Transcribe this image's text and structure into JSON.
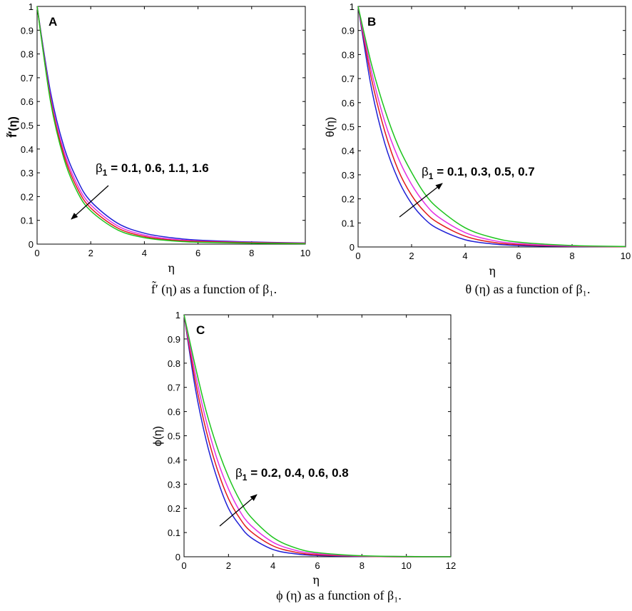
{
  "chart_data": [
    {
      "type": "line",
      "panel_label": "A",
      "xlabel": "η",
      "ylabel": "f̃′(η)",
      "xlim": [
        0,
        10
      ],
      "ylim": [
        0,
        1
      ],
      "xticks": [
        "0",
        "2",
        "4",
        "6",
        "8",
        "10"
      ],
      "yticks": [
        "0",
        "0.1",
        "0.2",
        "0.3",
        "0.4",
        "0.5",
        "0.6",
        "0.7",
        "0.8",
        "0.9",
        "1"
      ],
      "annotation": {
        "symbol": "β",
        "subscript": "1",
        "text": " = 0.1, 0.6, 1.1, 1.6"
      },
      "caption": "f̃′ (η) as a function of β₁.",
      "grid": false,
      "series": [
        {
          "color": "#1f1fd6",
          "x": [
            0,
            0.5,
            1,
            1.5,
            2,
            3,
            4,
            5,
            6,
            8,
            10
          ],
          "y": [
            1.0,
            0.64,
            0.41,
            0.27,
            0.18,
            0.088,
            0.046,
            0.027,
            0.017,
            0.009,
            0.005
          ]
        },
        {
          "color": "#e42fe4",
          "x": [
            0,
            0.5,
            1,
            1.5,
            2,
            3,
            4,
            5,
            6,
            8,
            10
          ],
          "y": [
            1.0,
            0.62,
            0.39,
            0.25,
            0.165,
            0.077,
            0.038,
            0.021,
            0.013,
            0.007,
            0.004
          ]
        },
        {
          "color": "#e11a1a",
          "x": [
            0,
            0.5,
            1,
            1.5,
            2,
            3,
            4,
            5,
            6,
            8,
            10
          ],
          "y": [
            1.0,
            0.61,
            0.375,
            0.235,
            0.152,
            0.068,
            0.032,
            0.017,
            0.011,
            0.006,
            0.003
          ]
        },
        {
          "color": "#1dc41d",
          "x": [
            0,
            0.5,
            1,
            1.5,
            2,
            3,
            4,
            5,
            6,
            8,
            10
          ],
          "y": [
            1.0,
            0.6,
            0.36,
            0.22,
            0.14,
            0.06,
            0.027,
            0.014,
            0.008,
            0.004,
            0.002
          ]
        }
      ]
    },
    {
      "type": "line",
      "panel_label": "B",
      "xlabel": "η",
      "ylabel": "θ(η)",
      "xlim": [
        0,
        10
      ],
      "ylim": [
        0,
        1
      ],
      "xticks": [
        "0",
        "2",
        "4",
        "6",
        "8",
        "10"
      ],
      "yticks": [
        "0",
        "0.1",
        "0.2",
        "0.3",
        "0.4",
        "0.5",
        "0.6",
        "0.7",
        "0.8",
        "0.9",
        "1"
      ],
      "annotation": {
        "symbol": "β",
        "subscript": "1",
        "text": " = 0.1, 0.3, 0.5, 0.7"
      },
      "caption": "θ (η) as a function of β₁.",
      "grid": false,
      "series": [
        {
          "color": "#1f1fd6",
          "x": [
            0,
            0.5,
            1,
            1.5,
            2,
            2.5,
            3,
            4,
            5,
            6,
            8,
            10
          ],
          "y": [
            1.0,
            0.66,
            0.43,
            0.28,
            0.18,
            0.115,
            0.075,
            0.03,
            0.013,
            0.006,
            0.002,
            0.001
          ]
        },
        {
          "color": "#e11a1a",
          "x": [
            0,
            0.5,
            1,
            1.5,
            2,
            2.5,
            3,
            4,
            5,
            6,
            8,
            10
          ],
          "y": [
            1.0,
            0.7,
            0.48,
            0.32,
            0.215,
            0.145,
            0.1,
            0.045,
            0.02,
            0.01,
            0.003,
            0.001
          ]
        },
        {
          "color": "#e42fe4",
          "x": [
            0,
            0.5,
            1,
            1.5,
            2,
            2.5,
            3,
            4,
            5,
            6,
            8,
            10
          ],
          "y": [
            1.0,
            0.73,
            0.52,
            0.37,
            0.26,
            0.18,
            0.125,
            0.06,
            0.028,
            0.014,
            0.004,
            0.002
          ]
        },
        {
          "color": "#1dc41d",
          "x": [
            0,
            0.5,
            1,
            1.5,
            2,
            2.5,
            3,
            4,
            5,
            6,
            8,
            10
          ],
          "y": [
            1.0,
            0.76,
            0.57,
            0.42,
            0.31,
            0.22,
            0.16,
            0.08,
            0.04,
            0.02,
            0.006,
            0.002
          ]
        }
      ]
    },
    {
      "type": "line",
      "panel_label": "C",
      "xlabel": "η",
      "ylabel": "ϕ(η)",
      "xlim": [
        0,
        12
      ],
      "ylim": [
        0,
        1
      ],
      "xticks": [
        "0",
        "2",
        "4",
        "6",
        "8",
        "10",
        "12"
      ],
      "yticks": [
        "0",
        "0.1",
        "0.2",
        "0.3",
        "0.4",
        "0.5",
        "0.6",
        "0.7",
        "0.8",
        "0.9",
        "1"
      ],
      "annotation": {
        "symbol": "β",
        "subscript": "1",
        "text": " = 0.2, 0.4, 0.6, 0.8"
      },
      "caption": "ϕ (η) as a function of β₁.",
      "grid": false,
      "series": [
        {
          "color": "#1f1fd6",
          "x": [
            0,
            0.5,
            1,
            1.5,
            2,
            2.5,
            3,
            4,
            5,
            6,
            8,
            10,
            12
          ],
          "y": [
            1.0,
            0.7,
            0.48,
            0.32,
            0.2,
            0.13,
            0.08,
            0.03,
            0.012,
            0.005,
            0.001,
            0.0,
            0.0
          ]
        },
        {
          "color": "#e11a1a",
          "x": [
            0,
            0.5,
            1,
            1.5,
            2,
            2.5,
            3,
            4,
            5,
            6,
            8,
            10,
            12
          ],
          "y": [
            1.0,
            0.73,
            0.52,
            0.36,
            0.24,
            0.16,
            0.105,
            0.045,
            0.019,
            0.008,
            0.002,
            0.0,
            0.0
          ]
        },
        {
          "color": "#e42fe4",
          "x": [
            0,
            0.5,
            1,
            1.5,
            2,
            2.5,
            3,
            4,
            5,
            6,
            8,
            10,
            12
          ],
          "y": [
            1.0,
            0.76,
            0.56,
            0.4,
            0.28,
            0.19,
            0.13,
            0.06,
            0.027,
            0.012,
            0.003,
            0.001,
            0.0
          ]
        },
        {
          "color": "#1dc41d",
          "x": [
            0,
            0.5,
            1,
            1.5,
            2,
            2.5,
            3,
            4,
            5,
            6,
            8,
            10,
            12
          ],
          "y": [
            1.0,
            0.79,
            0.6,
            0.45,
            0.33,
            0.235,
            0.165,
            0.08,
            0.037,
            0.017,
            0.004,
            0.001,
            0.0
          ]
        }
      ]
    }
  ]
}
